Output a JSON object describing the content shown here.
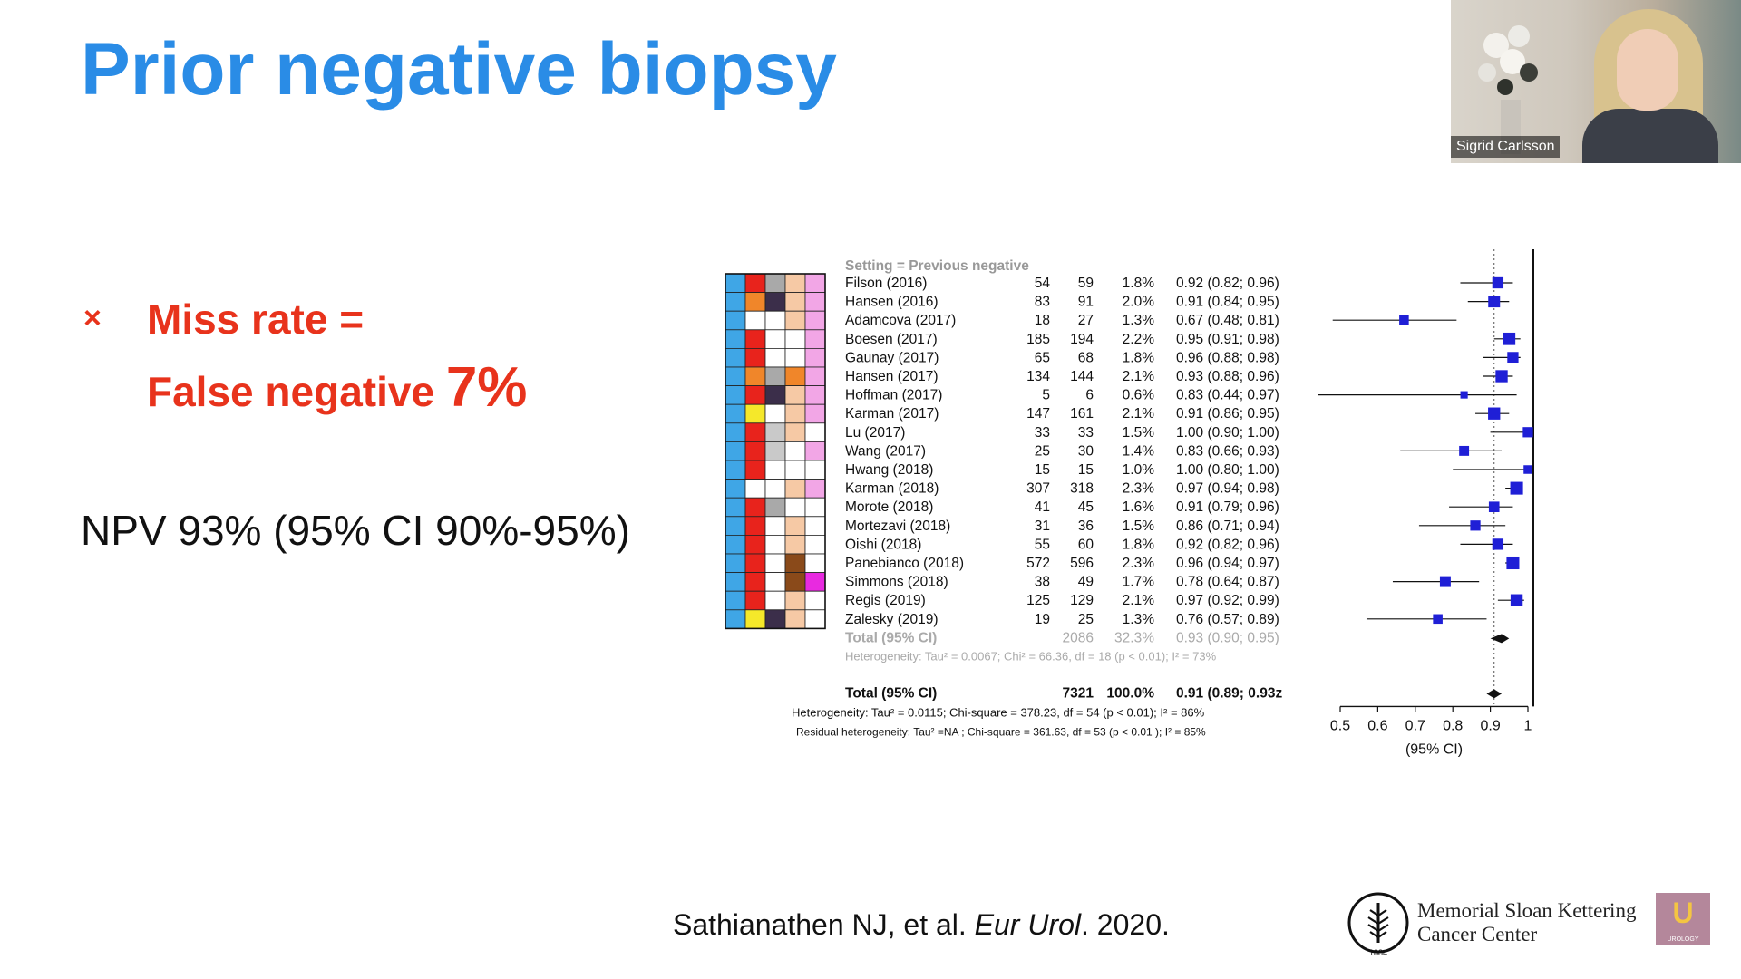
{
  "slide": {
    "title": "Prior negative biopsy",
    "bullet_marker": "×",
    "bullet_line1": "Miss rate =",
    "bullet_line2_text": "False negative ",
    "bullet_line2_value": "7%",
    "npv": "NPV 93% (95% CI 90%-95%)",
    "citation_author": "Sathianathen NJ, et al. ",
    "citation_journal": "Eur Urol",
    "citation_year": ". 2020."
  },
  "webcam": {
    "participant_name": "Sigrid Carlsson"
  },
  "logo": {
    "line1": "Memorial Sloan Kettering",
    "line2": "Cancer Center",
    "year": "1884",
    "badge_letter": "U",
    "badge_sub": "UROLOGY"
  },
  "chart_data": {
    "type": "forest",
    "setting_label": "Setting = Previous negative",
    "studies": [
      {
        "name": "Filson (2016)",
        "events": 54,
        "total": 59,
        "weight": "1.8%",
        "ci": "0.92 (0.82; 0.96)",
        "est": 0.92,
        "lo": 0.82,
        "hi": 0.96
      },
      {
        "name": "Hansen (2016)",
        "events": 83,
        "total": 91,
        "weight": "2.0%",
        "ci": "0.91 (0.84; 0.95)",
        "est": 0.91,
        "lo": 0.84,
        "hi": 0.95
      },
      {
        "name": "Adamcova (2017)",
        "events": 18,
        "total": 27,
        "weight": "1.3%",
        "ci": "0.67 (0.48; 0.81)",
        "est": 0.67,
        "lo": 0.48,
        "hi": 0.81
      },
      {
        "name": "Boesen (2017)",
        "events": 185,
        "total": 194,
        "weight": "2.2%",
        "ci": "0.95 (0.91; 0.98)",
        "est": 0.95,
        "lo": 0.91,
        "hi": 0.98
      },
      {
        "name": "Gaunay (2017)",
        "events": 65,
        "total": 68,
        "weight": "1.8%",
        "ci": "0.96 (0.88; 0.98)",
        "est": 0.96,
        "lo": 0.88,
        "hi": 0.98
      },
      {
        "name": "Hansen (2017)",
        "events": 134,
        "total": 144,
        "weight": "2.1%",
        "ci": "0.93 (0.88; 0.96)",
        "est": 0.93,
        "lo": 0.88,
        "hi": 0.96
      },
      {
        "name": "Hoffman (2017)",
        "events": 5,
        "total": 6,
        "weight": "0.6%",
        "ci": "0.83 (0.44; 0.97)",
        "est": 0.83,
        "lo": 0.44,
        "hi": 0.97
      },
      {
        "name": "Karman (2017)",
        "events": 147,
        "total": 161,
        "weight": "2.1%",
        "ci": "0.91 (0.86; 0.95)",
        "est": 0.91,
        "lo": 0.86,
        "hi": 0.95
      },
      {
        "name": "Lu (2017)",
        "events": 33,
        "total": 33,
        "weight": "1.5%",
        "ci": "1.00 (0.90; 1.00)",
        "est": 1.0,
        "lo": 0.9,
        "hi": 1.0
      },
      {
        "name": "Wang (2017)",
        "events": 25,
        "total": 30,
        "weight": "1.4%",
        "ci": "0.83 (0.66; 0.93)",
        "est": 0.83,
        "lo": 0.66,
        "hi": 0.93
      },
      {
        "name": "Hwang (2018)",
        "events": 15,
        "total": 15,
        "weight": "1.0%",
        "ci": "1.00 (0.80; 1.00)",
        "est": 1.0,
        "lo": 0.8,
        "hi": 1.0
      },
      {
        "name": "Karman (2018)",
        "events": 307,
        "total": 318,
        "weight": "2.3%",
        "ci": "0.97 (0.94; 0.98)",
        "est": 0.97,
        "lo": 0.94,
        "hi": 0.98
      },
      {
        "name": "Morote (2018)",
        "events": 41,
        "total": 45,
        "weight": "1.6%",
        "ci": "0.91 (0.79; 0.96)",
        "est": 0.91,
        "lo": 0.79,
        "hi": 0.96
      },
      {
        "name": "Mortezavi (2018)",
        "events": 31,
        "total": 36,
        "weight": "1.5%",
        "ci": "0.86 (0.71; 0.94)",
        "est": 0.86,
        "lo": 0.71,
        "hi": 0.94
      },
      {
        "name": "Oishi (2018)",
        "events": 55,
        "total": 60,
        "weight": "1.8%",
        "ci": "0.92 (0.82; 0.96)",
        "est": 0.92,
        "lo": 0.82,
        "hi": 0.96
      },
      {
        "name": "Panebianco (2018)",
        "events": 572,
        "total": 596,
        "weight": "2.3%",
        "ci": "0.96 (0.94; 0.97)",
        "est": 0.96,
        "lo": 0.94,
        "hi": 0.97
      },
      {
        "name": "Simmons (2018)",
        "events": 38,
        "total": 49,
        "weight": "1.7%",
        "ci": "0.78 (0.64; 0.87)",
        "est": 0.78,
        "lo": 0.64,
        "hi": 0.87
      },
      {
        "name": "Regis (2019)",
        "events": 125,
        "total": 129,
        "weight": "2.1%",
        "ci": "0.97 (0.92; 0.99)",
        "est": 0.97,
        "lo": 0.92,
        "hi": 0.99
      },
      {
        "name": "Zalesky (2019)",
        "events": 19,
        "total": 25,
        "weight": "1.3%",
        "ci": "0.76 (0.57; 0.89)",
        "est": 0.76,
        "lo": 0.57,
        "hi": 0.89
      }
    ],
    "subtotal": {
      "label": "Total (95% CI)",
      "total": "2086",
      "weight": "32.3%",
      "ci": "0.93 (0.90; 0.95)",
      "est": 0.93,
      "lo": 0.9,
      "hi": 0.95
    },
    "subtotal_heterogeneity": "Heterogeneity: Tau² = 0.0067; Chi² = 66.36, df = 18 (p < 0.01); I² = 73%",
    "total": {
      "label": "Total (95% CI)",
      "total": "7321",
      "weight": "100.0%",
      "ci": "0.91 (0.89; 0.93z",
      "est": 0.91,
      "lo": 0.89,
      "hi": 0.93
    },
    "total_heterogeneity": "Heterogeneity: Tau² = 0.0115; Chi-square = 378.23, df = 54 (p < 0.01); I² = 86%",
    "residual_heterogeneity": "Residual heterogeneity: Tau² =NA ; Chi-square = 361.63, df = 53   (p < 0.01 ); I² = 85%",
    "x_ticks": [
      "0.5",
      "0.6",
      "0.7",
      "0.8",
      "0.9",
      "1"
    ],
    "xlim": [
      0.5,
      1.0
    ],
    "reference_value": 0.91,
    "xlabel": "(95% CI)",
    "quality_colors": [
      "#3fa6e6",
      "#e8231c",
      "#c9c9c9",
      "#f6c9a5",
      "#f2a6e6"
    ],
    "quality_grid": [
      [
        "#3fa6e6",
        "#e8231c",
        "#a9a9a9",
        "#f6c9a5",
        "#f2a6e6"
      ],
      [
        "#3fa6e6",
        "#f0862a",
        "#3b2e4a",
        "#f6c9a5",
        "#f2a6e6"
      ],
      [
        "#3fa6e6",
        "#ffffff",
        "#ffffff",
        "#f6c9a5",
        "#f2a6e6"
      ],
      [
        "#3fa6e6",
        "#e8231c",
        "#ffffff",
        "#ffffff",
        "#f2a6e6"
      ],
      [
        "#3fa6e6",
        "#e8231c",
        "#ffffff",
        "#ffffff",
        "#f2a6e6"
      ],
      [
        "#3fa6e6",
        "#f0862a",
        "#a9a9a9",
        "#f0862a",
        "#f2a6e6"
      ],
      [
        "#3fa6e6",
        "#e8231c",
        "#3b2e4a",
        "#f6c9a5",
        "#f2a6e6"
      ],
      [
        "#3fa6e6",
        "#f5e82a",
        "#ffffff",
        "#f6c9a5",
        "#f2a6e6"
      ],
      [
        "#3fa6e6",
        "#e8231c",
        "#c9c9c9",
        "#f6c9a5",
        "#ffffff"
      ],
      [
        "#3fa6e6",
        "#e8231c",
        "#c9c9c9",
        "#ffffff",
        "#f2a6e6"
      ],
      [
        "#3fa6e6",
        "#e8231c",
        "#ffffff",
        "#ffffff",
        "#ffffff"
      ],
      [
        "#3fa6e6",
        "#ffffff",
        "#ffffff",
        "#f6c9a5",
        "#f2a6e6"
      ],
      [
        "#3fa6e6",
        "#e8231c",
        "#a9a9a9",
        "#ffffff",
        "#ffffff"
      ],
      [
        "#3fa6e6",
        "#e8231c",
        "#ffffff",
        "#f6c9a5",
        "#ffffff"
      ],
      [
        "#3fa6e6",
        "#e8231c",
        "#ffffff",
        "#f6c9a5",
        "#ffffff"
      ],
      [
        "#3fa6e6",
        "#e8231c",
        "#ffffff",
        "#8a4a1a",
        "#ffffff"
      ],
      [
        "#3fa6e6",
        "#e8231c",
        "#ffffff",
        "#8a4a1a",
        "#e82ae0"
      ],
      [
        "#3fa6e6",
        "#e8231c",
        "#ffffff",
        "#f6c9a5",
        "#ffffff"
      ],
      [
        "#3fa6e6",
        "#f5e82a",
        "#3b2e4a",
        "#f6c9a5",
        "#ffffff"
      ]
    ]
  }
}
